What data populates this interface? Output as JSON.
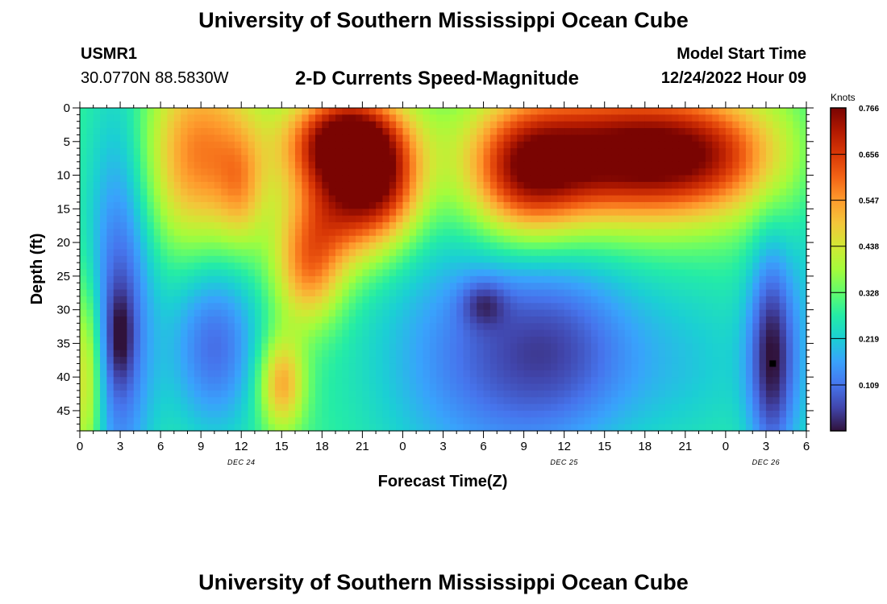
{
  "header": {
    "title": "University of Southern Mississippi Ocean Cube",
    "station": "USMR1",
    "coords": "30.0770N  88.5830W",
    "plot_title": "2-D Currents Speed-Magnitude",
    "start_label": "Model Start Time",
    "start_value": "12/24/2022 Hour 09"
  },
  "footer": {
    "title": "University of Southern Mississippi Ocean Cube"
  },
  "colors": {
    "colormap": [
      "#30123b",
      "#4145ab",
      "#4675ed",
      "#39a2fc",
      "#1bcfd4",
      "#24eca6",
      "#61fc6c",
      "#a4fc3b",
      "#d1e834",
      "#f3c63a",
      "#fe9b2d",
      "#f36315",
      "#d93806",
      "#b11901",
      "#7a0402"
    ]
  },
  "chart_data": {
    "type": "heatmap",
    "xlabel": "Forecast Time(Z)",
    "ylabel": "Depth (ft)",
    "x_range": [
      0,
      54
    ],
    "y_range": [
      0,
      48
    ],
    "x_tick_positions": [
      0,
      3,
      6,
      9,
      12,
      15,
      18,
      21,
      24,
      27,
      30,
      33,
      36,
      39,
      42,
      45,
      48,
      51,
      54
    ],
    "x_tick_labels": [
      "0",
      "3",
      "6",
      "9",
      "12",
      "15",
      "18",
      "21",
      "0",
      "3",
      "6",
      "9",
      "12",
      "15",
      "18",
      "21",
      "0",
      "3",
      "6"
    ],
    "date_labels": [
      {
        "text": "DEC 24",
        "x": 12
      },
      {
        "text": "DEC 25",
        "x": 36
      },
      {
        "text": "DEC 26",
        "x": 51
      }
    ],
    "y_tick_values": [
      0,
      5,
      10,
      15,
      20,
      25,
      30,
      35,
      40,
      45
    ],
    "colorbar": {
      "label": "Knots",
      "min": 0.0,
      "max": 0.766,
      "ticks": [
        0.766,
        0.656,
        0.547,
        0.438,
        0.328,
        0.219,
        0.109
      ]
    },
    "marker": {
      "x": 51.5,
      "y": 38
    },
    "field_model": {
      "note": "approximate speed-magnitude field (knots) as sums of gaussian features",
      "base": 0.3,
      "features": [
        {
          "x": 20,
          "y": 5,
          "sx": 3.0,
          "sy": 5,
          "a": 0.55
        },
        {
          "x": 20,
          "y": 15,
          "sx": 2.8,
          "sy": 6,
          "a": 0.32
        },
        {
          "x": 23,
          "y": 12,
          "sx": 2.0,
          "sy": 5,
          "a": 0.18
        },
        {
          "x": 17,
          "y": 24,
          "sx": 1.8,
          "sy": 6,
          "a": 0.25
        },
        {
          "x": 15,
          "y": 41,
          "sx": 1.2,
          "sy": 5,
          "a": 0.25
        },
        {
          "x": 40,
          "y": 7,
          "sx": 6.0,
          "sy": 7,
          "a": 0.47
        },
        {
          "x": 47,
          "y": 7,
          "sx": 4.0,
          "sy": 6,
          "a": 0.2
        },
        {
          "x": 33,
          "y": 10,
          "sx": 3.0,
          "sy": 7,
          "a": 0.3
        },
        {
          "x": 9,
          "y": 7,
          "sx": 3.0,
          "sy": 10,
          "a": 0.28
        },
        {
          "x": 3,
          "y": 30,
          "sx": 1.8,
          "sy": 22,
          "a": -0.22
        },
        {
          "x": 3,
          "y": 34,
          "sx": 0.7,
          "sy": 5,
          "a": -0.1
        },
        {
          "x": 10,
          "y": 35,
          "sx": 2.5,
          "sy": 10,
          "a": -0.2
        },
        {
          "x": 30,
          "y": 37,
          "sx": 6.0,
          "sy": 14,
          "a": -0.18
        },
        {
          "x": 36,
          "y": 36,
          "sx": 4.0,
          "sy": 10,
          "a": -0.12
        },
        {
          "x": 30,
          "y": 29,
          "sx": 1.2,
          "sy": 2.5,
          "a": -0.1
        },
        {
          "x": 45,
          "y": 38,
          "sx": 5.0,
          "sy": 10,
          "a": -0.08
        },
        {
          "x": 51.5,
          "y": 37,
          "sx": 1.3,
          "sy": 12,
          "a": -0.27
        },
        {
          "x": 0.5,
          "y": 40,
          "sx": 0.8,
          "sy": 10,
          "a": 0.2
        },
        {
          "x": 12,
          "y": 12,
          "sx": 1.2,
          "sy": 6,
          "a": 0.12
        },
        {
          "x": 54,
          "y": 30,
          "sx": 0.8,
          "sy": 20,
          "a": -0.05
        }
      ]
    }
  }
}
